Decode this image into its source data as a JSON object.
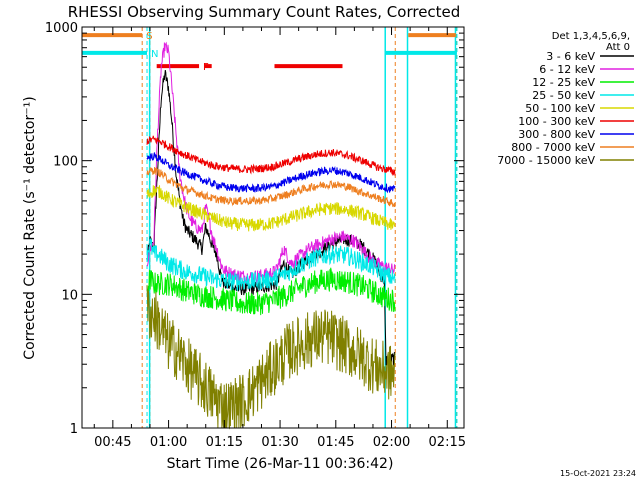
{
  "chart_data": {
    "type": "line",
    "title": "RHESSI Observing Summary Count Rates, Corrected",
    "xlabel": "Start Time (26-Mar-11 00:36:42)",
    "ylabel": "Corrected Count Rate (s⁻¹ detector⁻¹)",
    "yscale": "log",
    "ylim": [
      1,
      1000
    ],
    "xlim_minutes": [
      36.7,
      139.5
    ],
    "x_ticks": [
      {
        "min": 45,
        "label": "00:45"
      },
      {
        "min": 60,
        "label": "01:00"
      },
      {
        "min": 75,
        "label": "01:15"
      },
      {
        "min": 90,
        "label": "01:30"
      },
      {
        "min": 105,
        "label": "01:45"
      },
      {
        "min": 120,
        "label": "02:00"
      },
      {
        "min": 135,
        "label": "02:15"
      }
    ],
    "y_ticks": [
      {
        "val": 1,
        "label": "1"
      },
      {
        "val": 10,
        "label": "10"
      },
      {
        "val": 100,
        "label": "100"
      },
      {
        "val": 1000,
        "label": "1000"
      }
    ],
    "legend_header": [
      "Det 1,3,4,5,6,9,",
      "Att 0"
    ],
    "series": [
      {
        "name": "3 - 6 keV",
        "color": "#000000",
        "points": [
          [
            54.2,
            18
          ],
          [
            55,
            25
          ],
          [
            56,
            22
          ],
          [
            57,
            80
          ],
          [
            58,
            300
          ],
          [
            59,
            450
          ],
          [
            60,
            350
          ],
          [
            61,
            180
          ],
          [
            62,
            80
          ],
          [
            63,
            50
          ],
          [
            64,
            35
          ],
          [
            65,
            30
          ],
          [
            66,
            28
          ],
          [
            67,
            26
          ],
          [
            68,
            24
          ],
          [
            69,
            22
          ],
          [
            70,
            32
          ],
          [
            71,
            27
          ],
          [
            72,
            22
          ],
          [
            73,
            20
          ],
          [
            74,
            14
          ],
          [
            75,
            12
          ],
          [
            78,
            11
          ],
          [
            82,
            11
          ],
          [
            86,
            11.5
          ],
          [
            89,
            12
          ],
          [
            91,
            17
          ],
          [
            93,
            14
          ],
          [
            95,
            16
          ],
          [
            98,
            19
          ],
          [
            101,
            21
          ],
          [
            104,
            24
          ],
          [
            107,
            26
          ],
          [
            110,
            25
          ],
          [
            112,
            23
          ],
          [
            114,
            20
          ],
          [
            116,
            17
          ],
          [
            117,
            14
          ],
          [
            118,
            13
          ],
          [
            118.5,
            3.2
          ],
          [
            121,
            3.3
          ]
        ]
      },
      {
        "name": "6 - 12 keV",
        "color": "#e020e0",
        "points": [
          [
            54.2,
            17
          ],
          [
            55,
            22
          ],
          [
            56,
            25
          ],
          [
            57,
            150
          ],
          [
            58,
            500
          ],
          [
            59,
            720
          ],
          [
            60,
            650
          ],
          [
            61,
            330
          ],
          [
            62,
            160
          ],
          [
            63,
            80
          ],
          [
            64,
            55
          ],
          [
            65,
            42
          ],
          [
            66,
            36
          ],
          [
            67,
            33
          ],
          [
            68,
            31
          ],
          [
            69,
            30
          ],
          [
            70,
            45
          ],
          [
            71,
            35
          ],
          [
            72,
            26
          ],
          [
            73,
            22
          ],
          [
            74,
            17
          ],
          [
            75,
            15
          ],
          [
            78,
            14
          ],
          [
            82,
            13.5
          ],
          [
            86,
            14
          ],
          [
            89,
            15
          ],
          [
            91,
            22
          ],
          [
            93,
            17
          ],
          [
            95,
            19
          ],
          [
            98,
            22
          ],
          [
            101,
            24
          ],
          [
            104,
            26
          ],
          [
            107,
            27
          ],
          [
            110,
            25
          ],
          [
            112,
            22
          ],
          [
            114,
            19
          ],
          [
            116,
            17
          ],
          [
            118,
            16
          ],
          [
            121,
            15
          ]
        ]
      },
      {
        "name": "12 - 25 keV",
        "color": "#00ee00",
        "points": [
          [
            54.2,
            11
          ],
          [
            55,
            13
          ],
          [
            56,
            12
          ],
          [
            58,
            12
          ],
          [
            60,
            12
          ],
          [
            62,
            11.5
          ],
          [
            65,
            10.5
          ],
          [
            68,
            10
          ],
          [
            72,
            9.5
          ],
          [
            76,
            9
          ],
          [
            80,
            8.5
          ],
          [
            84,
            8.5
          ],
          [
            88,
            9
          ],
          [
            92,
            10
          ],
          [
            96,
            11.5
          ],
          [
            100,
            12.5
          ],
          [
            104,
            13
          ],
          [
            108,
            12.5
          ],
          [
            112,
            11.5
          ],
          [
            115,
            10.5
          ],
          [
            118,
            9.5
          ],
          [
            121,
            9
          ]
        ]
      },
      {
        "name": "25 - 50 keV",
        "color": "#00e8e8",
        "points": [
          [
            54.2,
            20
          ],
          [
            55,
            24
          ],
          [
            56,
            20
          ],
          [
            57,
            20
          ],
          [
            58,
            19
          ],
          [
            59,
            18
          ],
          [
            60,
            17
          ],
          [
            62,
            16
          ],
          [
            64,
            15
          ],
          [
            66,
            14.5
          ],
          [
            68,
            14
          ],
          [
            70,
            13.5
          ],
          [
            72,
            13
          ],
          [
            76,
            12.5
          ],
          [
            80,
            12.5
          ],
          [
            84,
            12.5
          ],
          [
            88,
            13
          ],
          [
            92,
            14.5
          ],
          [
            96,
            17
          ],
          [
            100,
            19
          ],
          [
            104,
            20
          ],
          [
            108,
            19.5
          ],
          [
            112,
            17.5
          ],
          [
            115,
            16
          ],
          [
            118,
            14
          ],
          [
            121,
            13
          ]
        ]
      },
      {
        "name": "50 - 100 keV",
        "color": "#d8d800",
        "points": [
          [
            54.2,
            55
          ],
          [
            56,
            60
          ],
          [
            58,
            58
          ],
          [
            60,
            52
          ],
          [
            64,
            46
          ],
          [
            68,
            41
          ],
          [
            72,
            37
          ],
          [
            76,
            34
          ],
          [
            80,
            33
          ],
          [
            84,
            33
          ],
          [
            88,
            34
          ],
          [
            92,
            37
          ],
          [
            96,
            40
          ],
          [
            100,
            43
          ],
          [
            104,
            44
          ],
          [
            108,
            43
          ],
          [
            112,
            40
          ],
          [
            116,
            36
          ],
          [
            121,
            32
          ]
        ]
      },
      {
        "name": "100 - 300 keV",
        "color": "#ee0000",
        "points": [
          [
            54.2,
            140
          ],
          [
            56,
            145
          ],
          [
            58,
            138
          ],
          [
            60,
            128
          ],
          [
            64,
            112
          ],
          [
            68,
            100
          ],
          [
            72,
            92
          ],
          [
            76,
            88
          ],
          [
            80,
            86
          ],
          [
            84,
            87
          ],
          [
            88,
            90
          ],
          [
            92,
            97
          ],
          [
            96,
            105
          ],
          [
            100,
            112
          ],
          [
            104,
            115
          ],
          [
            108,
            110
          ],
          [
            112,
            100
          ],
          [
            116,
            90
          ],
          [
            121,
            82
          ]
        ]
      },
      {
        "name": "300 - 800 keV",
        "color": "#0000ee",
        "points": [
          [
            54.2,
            105
          ],
          [
            56,
            108
          ],
          [
            58,
            102
          ],
          [
            60,
            92
          ],
          [
            64,
            82
          ],
          [
            68,
            74
          ],
          [
            72,
            67
          ],
          [
            76,
            63
          ],
          [
            80,
            62
          ],
          [
            84,
            62
          ],
          [
            88,
            64
          ],
          [
            92,
            70
          ],
          [
            96,
            77
          ],
          [
            100,
            82
          ],
          [
            104,
            85
          ],
          [
            108,
            81
          ],
          [
            112,
            74
          ],
          [
            116,
            66
          ],
          [
            121,
            60
          ]
        ]
      },
      {
        "name": "800 - 7000 keV",
        "color": "#ee7f20",
        "points": [
          [
            54.2,
            82
          ],
          [
            56,
            85
          ],
          [
            58,
            80
          ],
          [
            60,
            72
          ],
          [
            64,
            62
          ],
          [
            68,
            57
          ],
          [
            72,
            52
          ],
          [
            76,
            50
          ],
          [
            80,
            50
          ],
          [
            84,
            50
          ],
          [
            88,
            52
          ],
          [
            92,
            56
          ],
          [
            96,
            61
          ],
          [
            100,
            65
          ],
          [
            104,
            67
          ],
          [
            108,
            64
          ],
          [
            112,
            58
          ],
          [
            116,
            53
          ],
          [
            121,
            47
          ]
        ]
      },
      {
        "name": "7000 - 15000 keV",
        "color": "#808000",
        "points": [
          [
            54.2,
            7.5
          ],
          [
            56,
            7
          ],
          [
            58,
            5.5
          ],
          [
            60,
            4.3
          ],
          [
            62,
            3.8
          ],
          [
            64,
            3.2
          ],
          [
            66,
            2.7
          ],
          [
            68,
            2.3
          ],
          [
            70,
            2
          ],
          [
            72,
            1.7
          ],
          [
            74,
            1.5
          ],
          [
            76,
            1.4
          ],
          [
            78,
            1.5
          ],
          [
            80,
            1.6
          ],
          [
            82,
            1.8
          ],
          [
            84,
            2.1
          ],
          [
            86,
            2.4
          ],
          [
            88,
            2.8
          ],
          [
            90,
            3.2
          ],
          [
            92,
            3.7
          ],
          [
            94,
            4
          ],
          [
            96,
            4.3
          ],
          [
            98,
            4.6
          ],
          [
            100,
            4.8
          ],
          [
            102,
            4.8
          ],
          [
            104,
            4.7
          ],
          [
            106,
            4.3
          ],
          [
            108,
            4
          ],
          [
            110,
            3.7
          ],
          [
            112,
            3.4
          ],
          [
            114,
            3.1
          ],
          [
            116,
            2.8
          ],
          [
            118,
            2.7
          ],
          [
            121,
            2.5
          ]
        ]
      }
    ],
    "dashed_vlines": [
      {
        "min": 52.9,
        "color": "#ee7f20"
      },
      {
        "min": 55.0,
        "color": "#ee7f20"
      },
      {
        "min": 54.2,
        "color": "#00e8e8"
      },
      {
        "min": 121.0,
        "color": "#ee7f20"
      },
      {
        "min": 137.4,
        "color": "#ee7f20"
      },
      {
        "min": 137.6,
        "color": "#00e8e8"
      }
    ],
    "solid_vlines": [
      {
        "min": 54.9,
        "color": "#00e8e8"
      },
      {
        "min": 118.3,
        "color": "#00e8e8"
      },
      {
        "min": 124.3,
        "color": "#00e8e8"
      },
      {
        "min": 137.2,
        "color": "#00e8e8"
      }
    ],
    "flag_bars": [
      {
        "flag": "S",
        "color": "#ee7f20",
        "value": 870,
        "segments": [
          [
            36.7,
            52.9
          ],
          [
            124.5,
            137.3
          ]
        ]
      },
      {
        "flag": "N",
        "color": "#00e8e8",
        "value": 640,
        "segments": [
          [
            36.7,
            54.2
          ],
          [
            118.3,
            137.6
          ]
        ]
      },
      {
        "flag": "F",
        "color": "#ee0000",
        "value": 510,
        "segments": [
          [
            56.8,
            68.2
          ],
          [
            69.6,
            71.6
          ],
          [
            88.5,
            106.8
          ]
        ]
      }
    ]
  },
  "footer": {
    "date_stamp": "15-Oct-2021 23:24"
  }
}
